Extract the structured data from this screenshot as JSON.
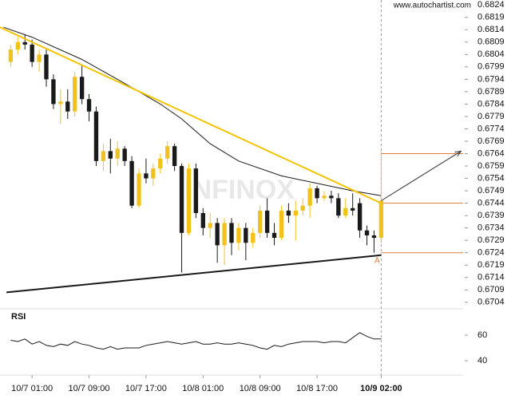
{
  "chart_data": {
    "type": "candlestick",
    "source": "www.autochartist.com",
    "watermark": "INFINOX",
    "x": [
      1,
      2,
      3,
      4,
      5,
      6,
      7,
      8,
      9,
      10,
      11,
      12,
      13,
      14,
      15,
      16,
      17,
      18,
      19,
      20,
      21,
      22,
      23,
      24,
      25,
      26,
      27,
      28,
      29,
      30,
      31,
      32,
      33,
      34,
      35,
      36,
      37,
      38,
      39,
      40,
      41,
      42,
      43,
      44,
      45,
      46,
      47,
      48,
      49,
      50,
      51,
      52,
      53
    ],
    "open": [
      0.6801,
      0.6806,
      0.6809,
      0.6808,
      0.6801,
      0.6804,
      0.6794,
      0.6784,
      0.6785,
      0.6781,
      0.6795,
      0.6786,
      0.6781,
      0.6761,
      0.6765,
      0.6762,
      0.6766,
      0.6761,
      0.6743,
      0.6756,
      0.6754,
      0.6758,
      0.6762,
      0.6767,
      0.6759,
      0.6732,
      0.6758,
      0.674,
      0.6734,
      0.6736,
      0.6727,
      0.6736,
      0.6728,
      0.6734,
      0.6728,
      0.6732,
      0.6741,
      0.6732,
      0.673,
      0.6741,
      0.6739,
      0.6741,
      0.6743,
      0.675,
      0.6746,
      0.6747,
      0.6746,
      0.6739,
      0.6742,
      0.6744,
      0.6733,
      0.6731,
      0.673
    ],
    "high": [
      0.6808,
      0.6811,
      0.6812,
      0.681,
      0.6806,
      0.6806,
      0.6796,
      0.679,
      0.679,
      0.6797,
      0.68,
      0.6788,
      0.6783,
      0.6768,
      0.677,
      0.6769,
      0.6767,
      0.6763,
      0.6758,
      0.6762,
      0.676,
      0.6764,
      0.6769,
      0.6768,
      0.676,
      0.676,
      0.676,
      0.6742,
      0.674,
      0.6738,
      0.6738,
      0.6738,
      0.6736,
      0.6736,
      0.6734,
      0.6743,
      0.6746,
      0.6736,
      0.6743,
      0.6744,
      0.6745,
      0.6746,
      0.6752,
      0.6751,
      0.6749,
      0.6749,
      0.6748,
      0.6746,
      0.6748,
      0.6746,
      0.6735,
      0.6733,
      0.6765
    ],
    "low": [
      0.6799,
      0.6804,
      0.6806,
      0.6799,
      0.6797,
      0.6791,
      0.6782,
      0.6776,
      0.6778,
      0.6779,
      0.6784,
      0.6777,
      0.6759,
      0.6757,
      0.6756,
      0.6759,
      0.6759,
      0.6742,
      0.6742,
      0.6752,
      0.6751,
      0.6756,
      0.676,
      0.6757,
      0.6716,
      0.6731,
      0.6738,
      0.6731,
      0.673,
      0.672,
      0.6719,
      0.6723,
      0.6725,
      0.6721,
      0.6726,
      0.673,
      0.673,
      0.6727,
      0.6729,
      0.6736,
      0.6729,
      0.6739,
      0.6738,
      0.6744,
      0.6745,
      0.6744,
      0.6738,
      0.6738,
      0.6739,
      0.673,
      0.6727,
      0.6724,
      0.6728
    ],
    "close": [
      0.6806,
      0.6809,
      0.6808,
      0.6801,
      0.6804,
      0.6794,
      0.6784,
      0.6785,
      0.6781,
      0.6795,
      0.6786,
      0.6781,
      0.6761,
      0.6765,
      0.6762,
      0.6766,
      0.6761,
      0.6743,
      0.6756,
      0.6754,
      0.6758,
      0.6762,
      0.6767,
      0.6759,
      0.6732,
      0.6758,
      0.674,
      0.6734,
      0.6736,
      0.6727,
      0.6736,
      0.6728,
      0.6734,
      0.6728,
      0.6732,
      0.6741,
      0.6732,
      0.673,
      0.6741,
      0.6739,
      0.6741,
      0.6743,
      0.675,
      0.6746,
      0.6747,
      0.6746,
      0.6739,
      0.6742,
      0.6741,
      0.6733,
      0.6731,
      0.673,
      0.6745
    ],
    "up_color": "#f2c21b",
    "down_color": "#1a1a1a",
    "xlim": [
      -0.5,
      64.5
    ],
    "xticks": [
      {
        "value": 4,
        "label": "10/7 01:00"
      },
      {
        "value": 12,
        "label": "10/7 09:00"
      },
      {
        "value": 20,
        "label": "10/7 17:00"
      },
      {
        "value": 28,
        "label": "10/8 01:00"
      },
      {
        "value": 36,
        "label": "10/8 09:00"
      },
      {
        "value": 44,
        "label": "10/8 17:00"
      },
      {
        "value": 53,
        "label": "10/9 02:00"
      }
    ],
    "ylim": [
      0.6702,
      0.6826
    ],
    "yticks": [
      0.6824,
      0.6819,
      0.6814,
      0.6809,
      0.6804,
      0.6799,
      0.6794,
      0.6789,
      0.6784,
      0.6779,
      0.6774,
      0.6769,
      0.6764,
      0.6759,
      0.6754,
      0.6749,
      0.6744,
      0.6739,
      0.6734,
      0.6729,
      0.6724,
      0.6719,
      0.6714,
      0.6709,
      0.6704
    ],
    "ma": {
      "color": "#1a1a1a",
      "x": [
        0,
        4,
        11,
        16,
        22,
        25,
        29,
        33,
        39,
        44,
        49,
        53
      ],
      "values": [
        0.6815,
        0.6811,
        0.6802,
        0.6794,
        0.6784,
        0.6778,
        0.6768,
        0.6761,
        0.6755,
        0.6752,
        0.6749,
        0.6747
      ]
    },
    "trendlines": [
      {
        "color": "#f5c400",
        "x": [
          -0.5,
          53
        ],
        "values": [
          0.6815,
          0.6744
        ]
      },
      {
        "color": "#1a1a1a",
        "x": [
          0.4,
          53
        ],
        "values": [
          0.6708,
          0.6723
        ]
      }
    ],
    "projection": {
      "color": "#333333",
      "x": [
        53,
        64.2
      ],
      "values": [
        0.6745,
        0.6765
      ]
    },
    "levels": [
      0.6764,
      0.6744,
      0.6724
    ],
    "level_color": "#e07b39",
    "pattern_label": "A",
    "rsi": {
      "title": "RSI",
      "color": "#1a1a1a",
      "ylim": [
        30,
        80
      ],
      "yticks": [
        40,
        60
      ],
      "values": [
        56,
        55,
        57,
        53,
        55,
        52,
        51,
        53,
        52,
        55,
        53,
        52,
        50,
        49,
        51,
        49,
        50,
        50,
        50,
        52,
        53,
        54,
        55,
        54,
        53,
        54,
        55,
        53,
        53,
        54,
        53,
        53,
        54,
        53,
        52,
        50,
        49,
        52,
        51,
        53,
        54,
        55,
        55,
        55,
        54,
        55,
        55,
        54,
        58,
        62,
        59,
        57,
        57
      ]
    }
  }
}
